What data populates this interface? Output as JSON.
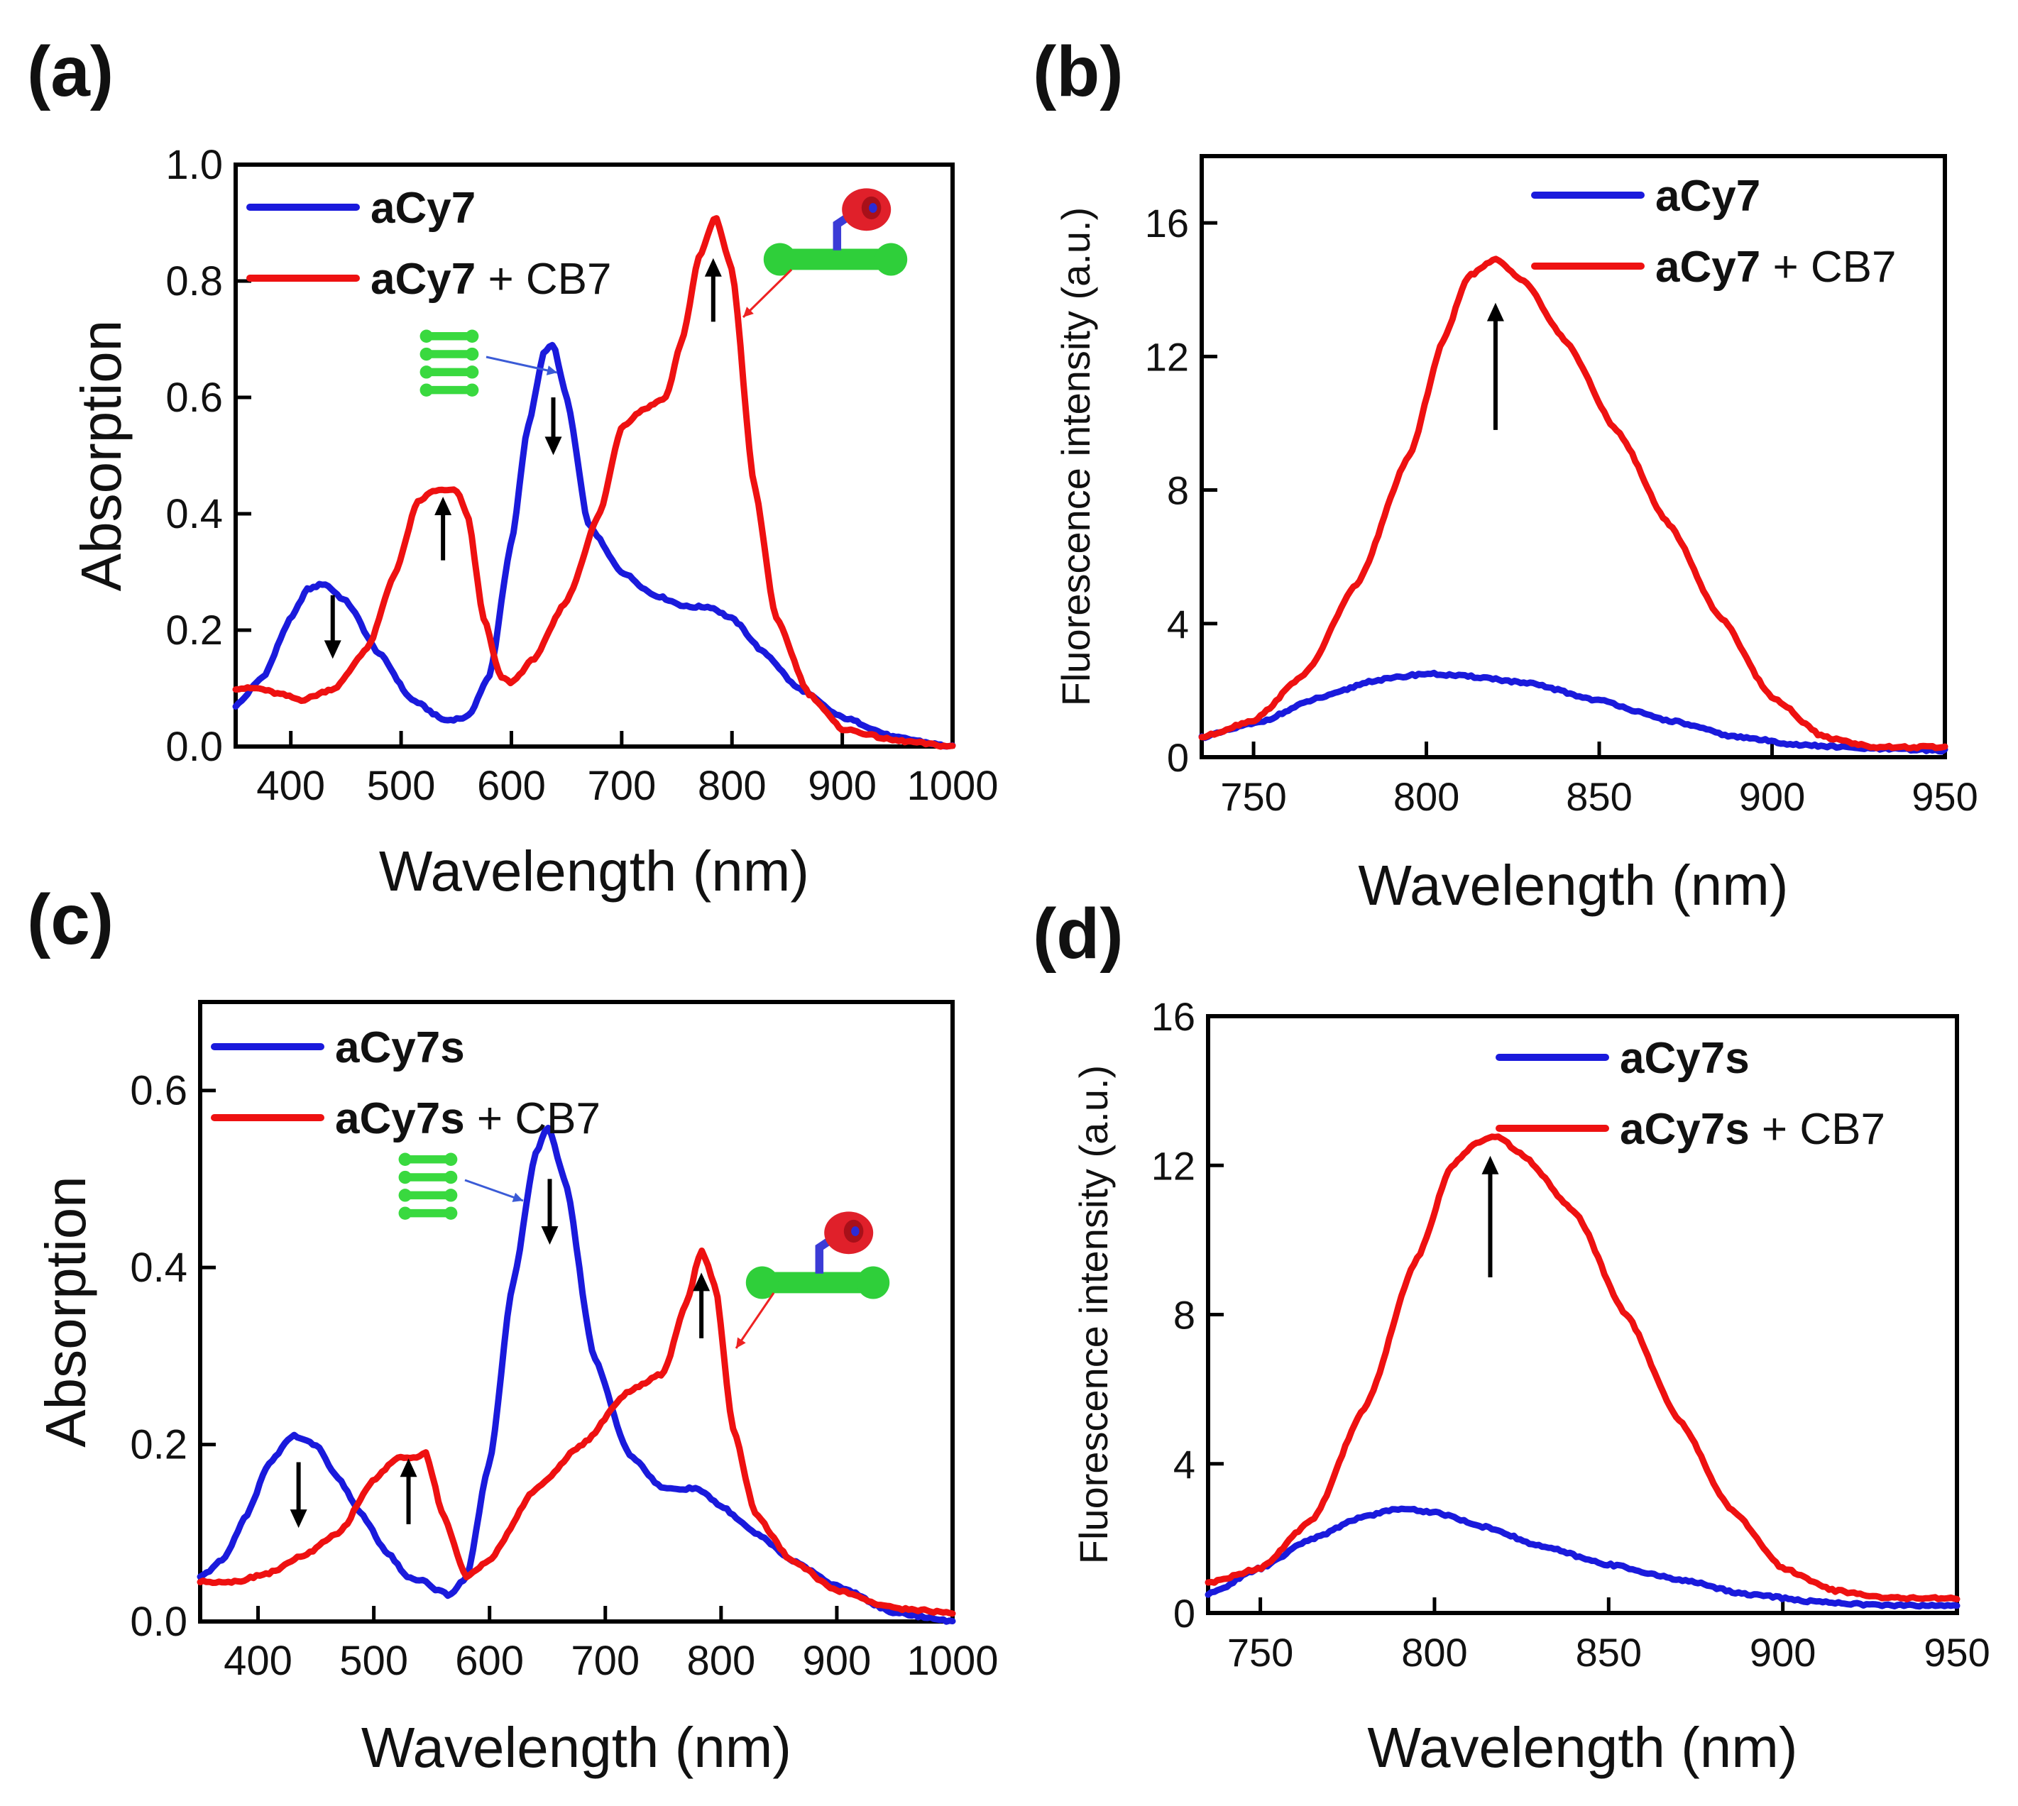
{
  "chart_data": [
    {
      "panel": "(a)",
      "type": "line",
      "xlabel": "Wavelength (nm)",
      "ylabel": "Absorption",
      "xlim": [
        350,
        1000
      ],
      "ylim": [
        0,
        1.0
      ],
      "xticks": [
        400,
        500,
        600,
        700,
        800,
        900,
        1000
      ],
      "xtick_labels": [
        "400",
        "500",
        "600",
        "700",
        "800",
        "900",
        "1000"
      ],
      "yticks": [
        0,
        0.2,
        0.4,
        0.6,
        0.8,
        1.0
      ],
      "ytick_labels": [
        "0.0",
        "0.2",
        "0.4",
        "0.6",
        "0.8",
        "1.0"
      ],
      "legend": [
        {
          "bold": "aCy7",
          "rest": "",
          "color": "#1a1adc"
        },
        {
          "bold": "aCy7",
          "rest": " + CB7",
          "color": "#ee1111"
        }
      ],
      "legend_position": "top-left",
      "series": [
        {
          "name": "aCy7",
          "color": "#1a1adc",
          "x": [
            350,
            375,
            400,
            415,
            430,
            450,
            480,
            510,
            540,
            560,
            580,
            600,
            615,
            630,
            638,
            650,
            670,
            700,
            730,
            760,
            780,
            800,
            830,
            860,
            900,
            950,
            1000
          ],
          "y": [
            0.07,
            0.12,
            0.22,
            0.27,
            0.28,
            0.25,
            0.16,
            0.08,
            0.045,
            0.05,
            0.12,
            0.35,
            0.55,
            0.68,
            0.69,
            0.6,
            0.38,
            0.3,
            0.26,
            0.24,
            0.24,
            0.22,
            0.16,
            0.1,
            0.05,
            0.015,
            0.0
          ]
        },
        {
          "name": "aCy7 + CB7",
          "color": "#ee1111",
          "x": [
            350,
            370,
            390,
            410,
            440,
            470,
            495,
            515,
            530,
            540,
            550,
            560,
            575,
            590,
            600,
            620,
            650,
            680,
            700,
            720,
            740,
            755,
            770,
            785,
            800,
            820,
            840,
            870,
            900,
            950,
            1000
          ],
          "y": [
            0.1,
            0.1,
            0.09,
            0.08,
            0.1,
            0.17,
            0.3,
            0.42,
            0.44,
            0.44,
            0.44,
            0.4,
            0.22,
            0.12,
            0.11,
            0.15,
            0.25,
            0.4,
            0.55,
            0.58,
            0.6,
            0.7,
            0.84,
            0.91,
            0.82,
            0.45,
            0.22,
            0.09,
            0.03,
            0.01,
            0.0
          ]
        }
      ],
      "arrows": [
        {
          "x": 438,
          "y_from": 0.26,
          "y_to": 0.18,
          "dir": "down"
        },
        {
          "x": 538,
          "y_from": 0.32,
          "y_to": 0.4,
          "dir": "up"
        },
        {
          "x": 638,
          "y_from": 0.6,
          "y_to": 0.53,
          "dir": "down"
        },
        {
          "x": 783,
          "y_from": 0.73,
          "y_to": 0.81,
          "dir": "up"
        }
      ]
    },
    {
      "panel": "(b)",
      "type": "line",
      "xlabel": "Wavelength (nm)",
      "ylabel": "Fluorescence intensity (a.u.)",
      "xlim": [
        735,
        950
      ],
      "ylim": [
        0,
        18
      ],
      "xticks": [
        750,
        800,
        850,
        900,
        950
      ],
      "xtick_labels": [
        "750",
        "800",
        "850",
        "900",
        "950"
      ],
      "yticks": [
        0,
        4,
        8,
        12,
        16
      ],
      "ytick_labels": [
        "0",
        "4",
        "8",
        "12",
        "16"
      ],
      "legend": [
        {
          "bold": "aCy7",
          "rest": "",
          "color": "#1a1adc"
        },
        {
          "bold": "aCy7",
          "rest": " + CB7",
          "color": "#ee1111"
        }
      ],
      "legend_position": "top-right",
      "series": [
        {
          "name": "aCy7",
          "color": "#1a1adc",
          "x": [
            735,
            750,
            770,
            785,
            800,
            815,
            830,
            850,
            870,
            890,
            910,
            930,
            950
          ],
          "y": [
            0.6,
            1.0,
            1.8,
            2.3,
            2.5,
            2.4,
            2.2,
            1.7,
            1.1,
            0.6,
            0.35,
            0.25,
            0.2
          ]
        },
        {
          "name": "aCy7 + CB7",
          "color": "#ee1111",
          "x": [
            735,
            750,
            765,
            780,
            795,
            805,
            812,
            820,
            828,
            840,
            855,
            870,
            885,
            900,
            915,
            930,
            950
          ],
          "y": [
            0.6,
            1.1,
            2.5,
            5.2,
            9.0,
            12.5,
            14.4,
            14.9,
            14.3,
            12.5,
            9.8,
            7.0,
            4.2,
            1.8,
            0.6,
            0.3,
            0.3
          ]
        }
      ],
      "arrows": [
        {
          "x": 820,
          "y_from": 9.8,
          "y_to": 13.1,
          "dir": "up"
        }
      ]
    },
    {
      "panel": "(c)",
      "type": "line",
      "xlabel": "Wavelength (nm)",
      "ylabel": "Absorption",
      "xlim": [
        350,
        1000
      ],
      "ylim": [
        0,
        0.7
      ],
      "xticks": [
        400,
        500,
        600,
        700,
        800,
        900,
        1000
      ],
      "xtick_labels": [
        "400",
        "500",
        "600",
        "700",
        "800",
        "900",
        "1000"
      ],
      "yticks": [
        0,
        0.2,
        0.4,
        0.6
      ],
      "ytick_labels": [
        "0.0",
        "0.2",
        "0.4",
        "0.6"
      ],
      "legend": [
        {
          "bold": "aCy7s",
          "rest": "",
          "color": "#1a1adc"
        },
        {
          "bold": "aCy7s",
          "rest": " + CB7",
          "color": "#ee1111"
        }
      ],
      "legend_position": "top-left",
      "series": [
        {
          "name": "aCy7s",
          "color": "#1a1adc",
          "x": [
            350,
            370,
            390,
            410,
            430,
            450,
            470,
            490,
            510,
            530,
            545,
            555,
            565,
            580,
            600,
            620,
            640,
            650,
            665,
            690,
            720,
            750,
            780,
            800,
            830,
            860,
            900,
            950,
            1000
          ],
          "y": [
            0.05,
            0.07,
            0.12,
            0.18,
            0.21,
            0.2,
            0.16,
            0.12,
            0.08,
            0.05,
            0.045,
            0.035,
            0.03,
            0.05,
            0.18,
            0.38,
            0.53,
            0.56,
            0.5,
            0.3,
            0.19,
            0.15,
            0.15,
            0.13,
            0.1,
            0.07,
            0.04,
            0.01,
            0.0
          ]
        },
        {
          "name": "aCy7s + CB7",
          "color": "#ee1111",
          "x": [
            350,
            380,
            410,
            440,
            470,
            500,
            520,
            535,
            545,
            560,
            580,
            600,
            640,
            680,
            720,
            750,
            770,
            783,
            795,
            810,
            830,
            860,
            900,
            950,
            1000
          ],
          "y": [
            0.045,
            0.045,
            0.055,
            0.075,
            0.1,
            0.16,
            0.185,
            0.185,
            0.19,
            0.12,
            0.05,
            0.07,
            0.15,
            0.2,
            0.26,
            0.28,
            0.36,
            0.42,
            0.38,
            0.22,
            0.12,
            0.07,
            0.035,
            0.015,
            0.01
          ]
        }
      ],
      "arrows": [
        {
          "x": 435,
          "y_from": 0.18,
          "y_to": 0.125,
          "dir": "down"
        },
        {
          "x": 530,
          "y_from": 0.11,
          "y_to": 0.165,
          "dir": "up"
        },
        {
          "x": 652,
          "y_from": 0.5,
          "y_to": 0.445,
          "dir": "down"
        },
        {
          "x": 783,
          "y_from": 0.32,
          "y_to": 0.375,
          "dir": "up"
        }
      ]
    },
    {
      "panel": "(d)",
      "type": "line",
      "xlabel": "Wavelength (nm)",
      "ylabel": "Fluorescence intensity (a.u.)",
      "xlim": [
        735,
        950
      ],
      "ylim": [
        0,
        16
      ],
      "xticks": [
        750,
        800,
        850,
        900,
        950
      ],
      "xtick_labels": [
        "750",
        "800",
        "850",
        "900",
        "950"
      ],
      "yticks": [
        0,
        4,
        8,
        12,
        16
      ],
      "ytick_labels": [
        "0",
        "4",
        "8",
        "12",
        "16"
      ],
      "legend": [
        {
          "bold": "aCy7s",
          "rest": "",
          "color": "#1a1adc"
        },
        {
          "bold": "aCy7s",
          "rest": " + CB7",
          "color": "#ee1111"
        }
      ],
      "legend_position": "top-right",
      "series": [
        {
          "name": "aCy7s",
          "color": "#1a1adc",
          "x": [
            735,
            750,
            765,
            780,
            790,
            800,
            815,
            830,
            850,
            870,
            890,
            910,
            930,
            950
          ],
          "y": [
            0.5,
            1.2,
            2.0,
            2.6,
            2.8,
            2.7,
            2.3,
            1.8,
            1.3,
            0.9,
            0.5,
            0.3,
            0.2,
            0.2
          ]
        },
        {
          "name": "aCy7s + CB7",
          "color": "#ee1111",
          "x": [
            735,
            750,
            765,
            780,
            795,
            805,
            812,
            818,
            825,
            840,
            855,
            870,
            885,
            900,
            915,
            930,
            950
          ],
          "y": [
            0.8,
            1.2,
            2.5,
            5.5,
            9.5,
            12.0,
            12.6,
            12.8,
            12.3,
            10.8,
            8.0,
            5.2,
            2.8,
            1.2,
            0.6,
            0.4,
            0.4
          ]
        }
      ],
      "arrows": [
        {
          "x": 816,
          "y_from": 9.0,
          "y_to": 11.8,
          "dir": "up"
        }
      ]
    }
  ]
}
